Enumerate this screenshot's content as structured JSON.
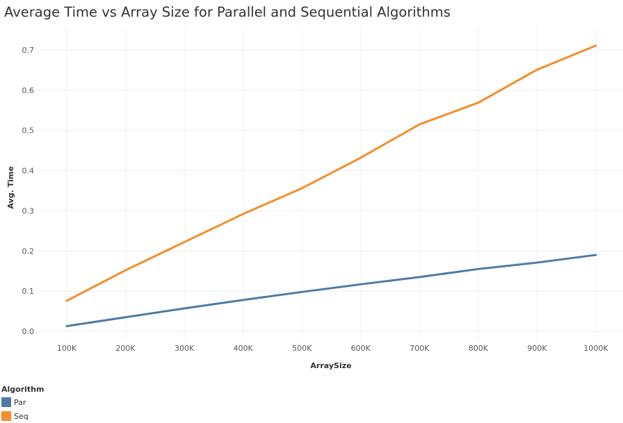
{
  "chart_data": {
    "type": "line",
    "title": "Average Time vs Array Size for Parallel and Sequential Algorithms",
    "xlabel": "ArraySize",
    "ylabel": "Avg. Time",
    "categories": [
      "100K",
      "200K",
      "300K",
      "400K",
      "500K",
      "600K",
      "700K",
      "800K",
      "900K",
      "1000K"
    ],
    "yticks": [
      "0.0",
      "0.1",
      "0.2",
      "0.3",
      "0.4",
      "0.5",
      "0.6",
      "0.7"
    ],
    "ylim": [
      0,
      0.7
    ],
    "grid": true,
    "legend_title": "Algorithm",
    "legend_position": "bottom-left",
    "series": [
      {
        "name": "Par",
        "color": "#4e79a7",
        "values": [
          0.013,
          0.035,
          0.057,
          0.078,
          0.098,
          0.117,
          0.135,
          0.155,
          0.171,
          0.19
        ]
      },
      {
        "name": "Seq",
        "color": "#f28e2b",
        "values": [
          0.076,
          0.152,
          0.222,
          0.292,
          0.356,
          0.432,
          0.515,
          0.569,
          0.651,
          0.711
        ]
      }
    ]
  }
}
